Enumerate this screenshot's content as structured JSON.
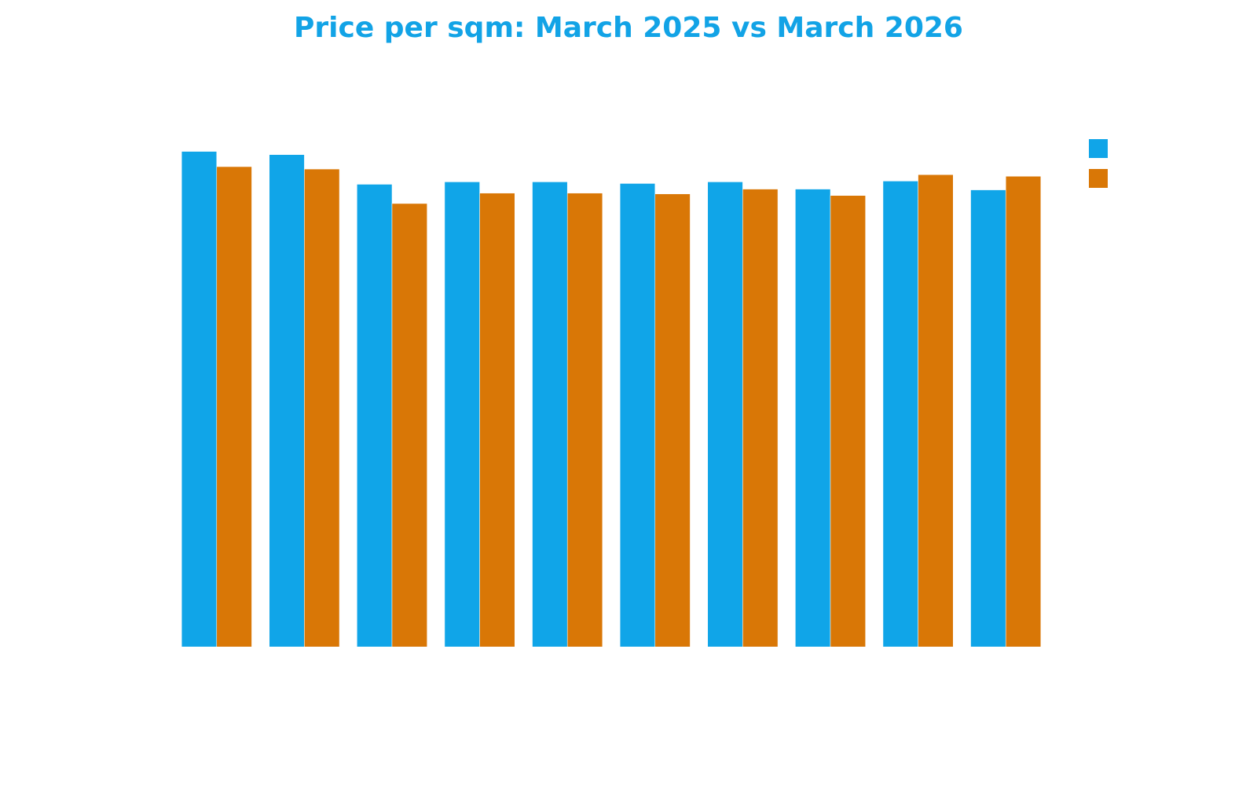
{
  "chart_data": {
    "type": "bar",
    "title": "Price per sqm: March 2025 vs March 2026",
    "categories": [
      null,
      null,
      null,
      null,
      null,
      null,
      null,
      null,
      null,
      null
    ],
    "series": [
      {
        "color": "#10a5e8",
        "values": [
          618,
          614,
          577,
          580,
          580,
          578,
          580,
          571,
          581,
          570
        ]
      },
      {
        "color": "#d97706",
        "values": [
          599,
          596,
          553,
          566,
          566,
          565,
          571,
          563,
          589,
          587
        ]
      }
    ],
    "ylim": [
      0,
      700
    ],
    "grid": false,
    "legend": "right"
  }
}
